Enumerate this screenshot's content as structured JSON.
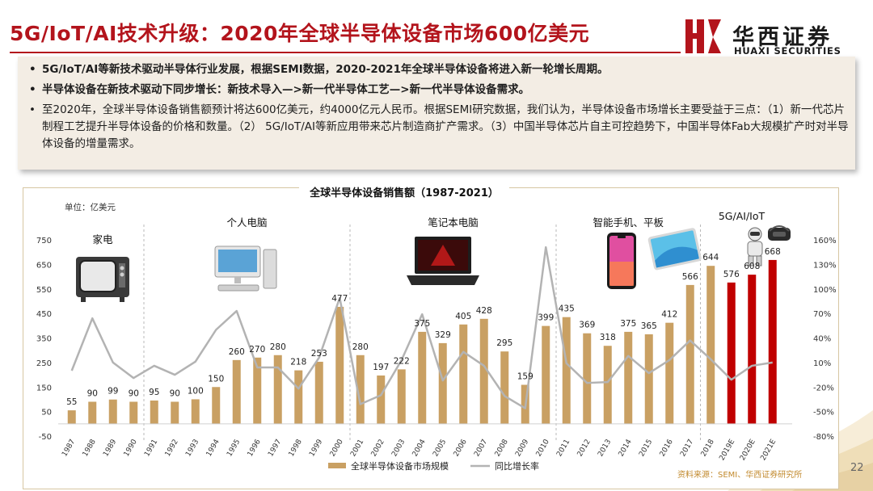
{
  "header": {
    "title": "5G/IoT/AI技术升级：2020年全球半导体设备市场600亿美元",
    "logo_cn": "华西证券",
    "logo_en": "HUAXI SECURITIES"
  },
  "summary": {
    "bullets": [
      {
        "marker": "•",
        "text": "5G/IoT/AI等新技术驱动半导体行业发展，根据SEMI数据，2020-2021年全球半导体设备将进入新一轮增长周期。"
      },
      {
        "marker": "•",
        "text": "半导体设备在新技术驱动下同步增长：新技术导入—>新一代半导体工艺—>新一代半导体设备需求。"
      },
      {
        "marker": "•",
        "text": "至2020年，全球半导体设备销售额预计将达600亿美元，约4000亿元人民币。根据SEMI研究数据，我们认为，半导体设备市场增长主要受益于三点：（1）新一代芯片制程工艺提升半导体设备的价格和数量。（2） 5G/IoT/AI等新应用带来芯片制造商扩产需求。（3）中国半导体芯片自主可控趋势下，中国半导体Fab大规模扩产时对半导体设备的增量需求。"
      }
    ]
  },
  "chart_data": {
    "type": "bar+line",
    "title": "全球半导体设备销售额（1987-2021）",
    "unit_label": "单位：亿美元",
    "categories": [
      "1987",
      "1988",
      "1989",
      "1990",
      "1991",
      "1992",
      "1993",
      "1994",
      "1995",
      "1996",
      "1997",
      "1998",
      "1999",
      "2000",
      "2001",
      "2002",
      "2003",
      "2004",
      "2005",
      "2006",
      "2007",
      "2008",
      "2009",
      "2010",
      "2011",
      "2012",
      "2013",
      "2014",
      "2015",
      "2016",
      "2017",
      "2018",
      "2019E",
      "2020E",
      "2021E"
    ],
    "series": [
      {
        "name": "全球半导体设备市场规模",
        "kind": "bar",
        "axis": "left",
        "values": [
          55,
          90,
          99,
          90,
          95,
          90,
          100,
          150,
          260,
          270,
          280,
          218,
          253,
          477,
          280,
          197,
          222,
          375,
          329,
          405,
          428,
          295,
          159,
          399,
          435,
          369,
          318,
          375,
          365,
          412,
          566,
          644,
          576,
          608,
          668
        ],
        "colors": {
          "actual": "#c9a063",
          "forecast": "#c00000"
        },
        "forecast_from": "2019E"
      },
      {
        "name": "同比增长率",
        "kind": "line",
        "axis": "right",
        "color": "#b3b3b3",
        "values": [
          0,
          64,
          10,
          -9,
          6,
          -5,
          11,
          50,
          73,
          4,
          4,
          -22,
          16,
          89,
          -41,
          -30,
          13,
          69,
          -12,
          23,
          6,
          -31,
          -46,
          151,
          9,
          -15,
          -14,
          18,
          -3,
          13,
          37,
          14,
          -11,
          6,
          10
        ]
      }
    ],
    "left_axis": {
      "min": -50,
      "max": 750,
      "ticks": [
        -50,
        50,
        150,
        250,
        350,
        450,
        550,
        650,
        750
      ]
    },
    "right_axis": {
      "min": -80,
      "max": 160,
      "ticks": [
        "-80%",
        "-50%",
        "-20%",
        "10%",
        "40%",
        "70%",
        "100%",
        "130%",
        "160%"
      ]
    },
    "eras": [
      {
        "label": "家电",
        "from": "1987",
        "to": "1990"
      },
      {
        "label": "个人电脑",
        "from": "1991",
        "to": "2000"
      },
      {
        "label": "笔记本电脑",
        "from": "2001",
        "to": "2010"
      },
      {
        "label": "智能手机、平板",
        "from": "2011",
        "to": "2017"
      },
      {
        "label": "5G/AI/IoT",
        "from": "2018",
        "to": "2021E"
      }
    ],
    "legend": {
      "placement": "bottom-center"
    },
    "source": "资料来源：SEMI、华西证券研究所"
  },
  "footer": {
    "page_number": "22"
  },
  "colors": {
    "brand_red": "#b3141c",
    "panel_bg": "#f3ede4",
    "bar_gold": "#c9a063",
    "bar_forecast": "#c00000",
    "line_gray": "#b3b3b3"
  },
  "icons": [
    "tv-icon",
    "desktop-pc-icon",
    "laptop-icon",
    "smartphone-icon",
    "tablet-icon",
    "robot-icon",
    "vr-headset-icon"
  ]
}
